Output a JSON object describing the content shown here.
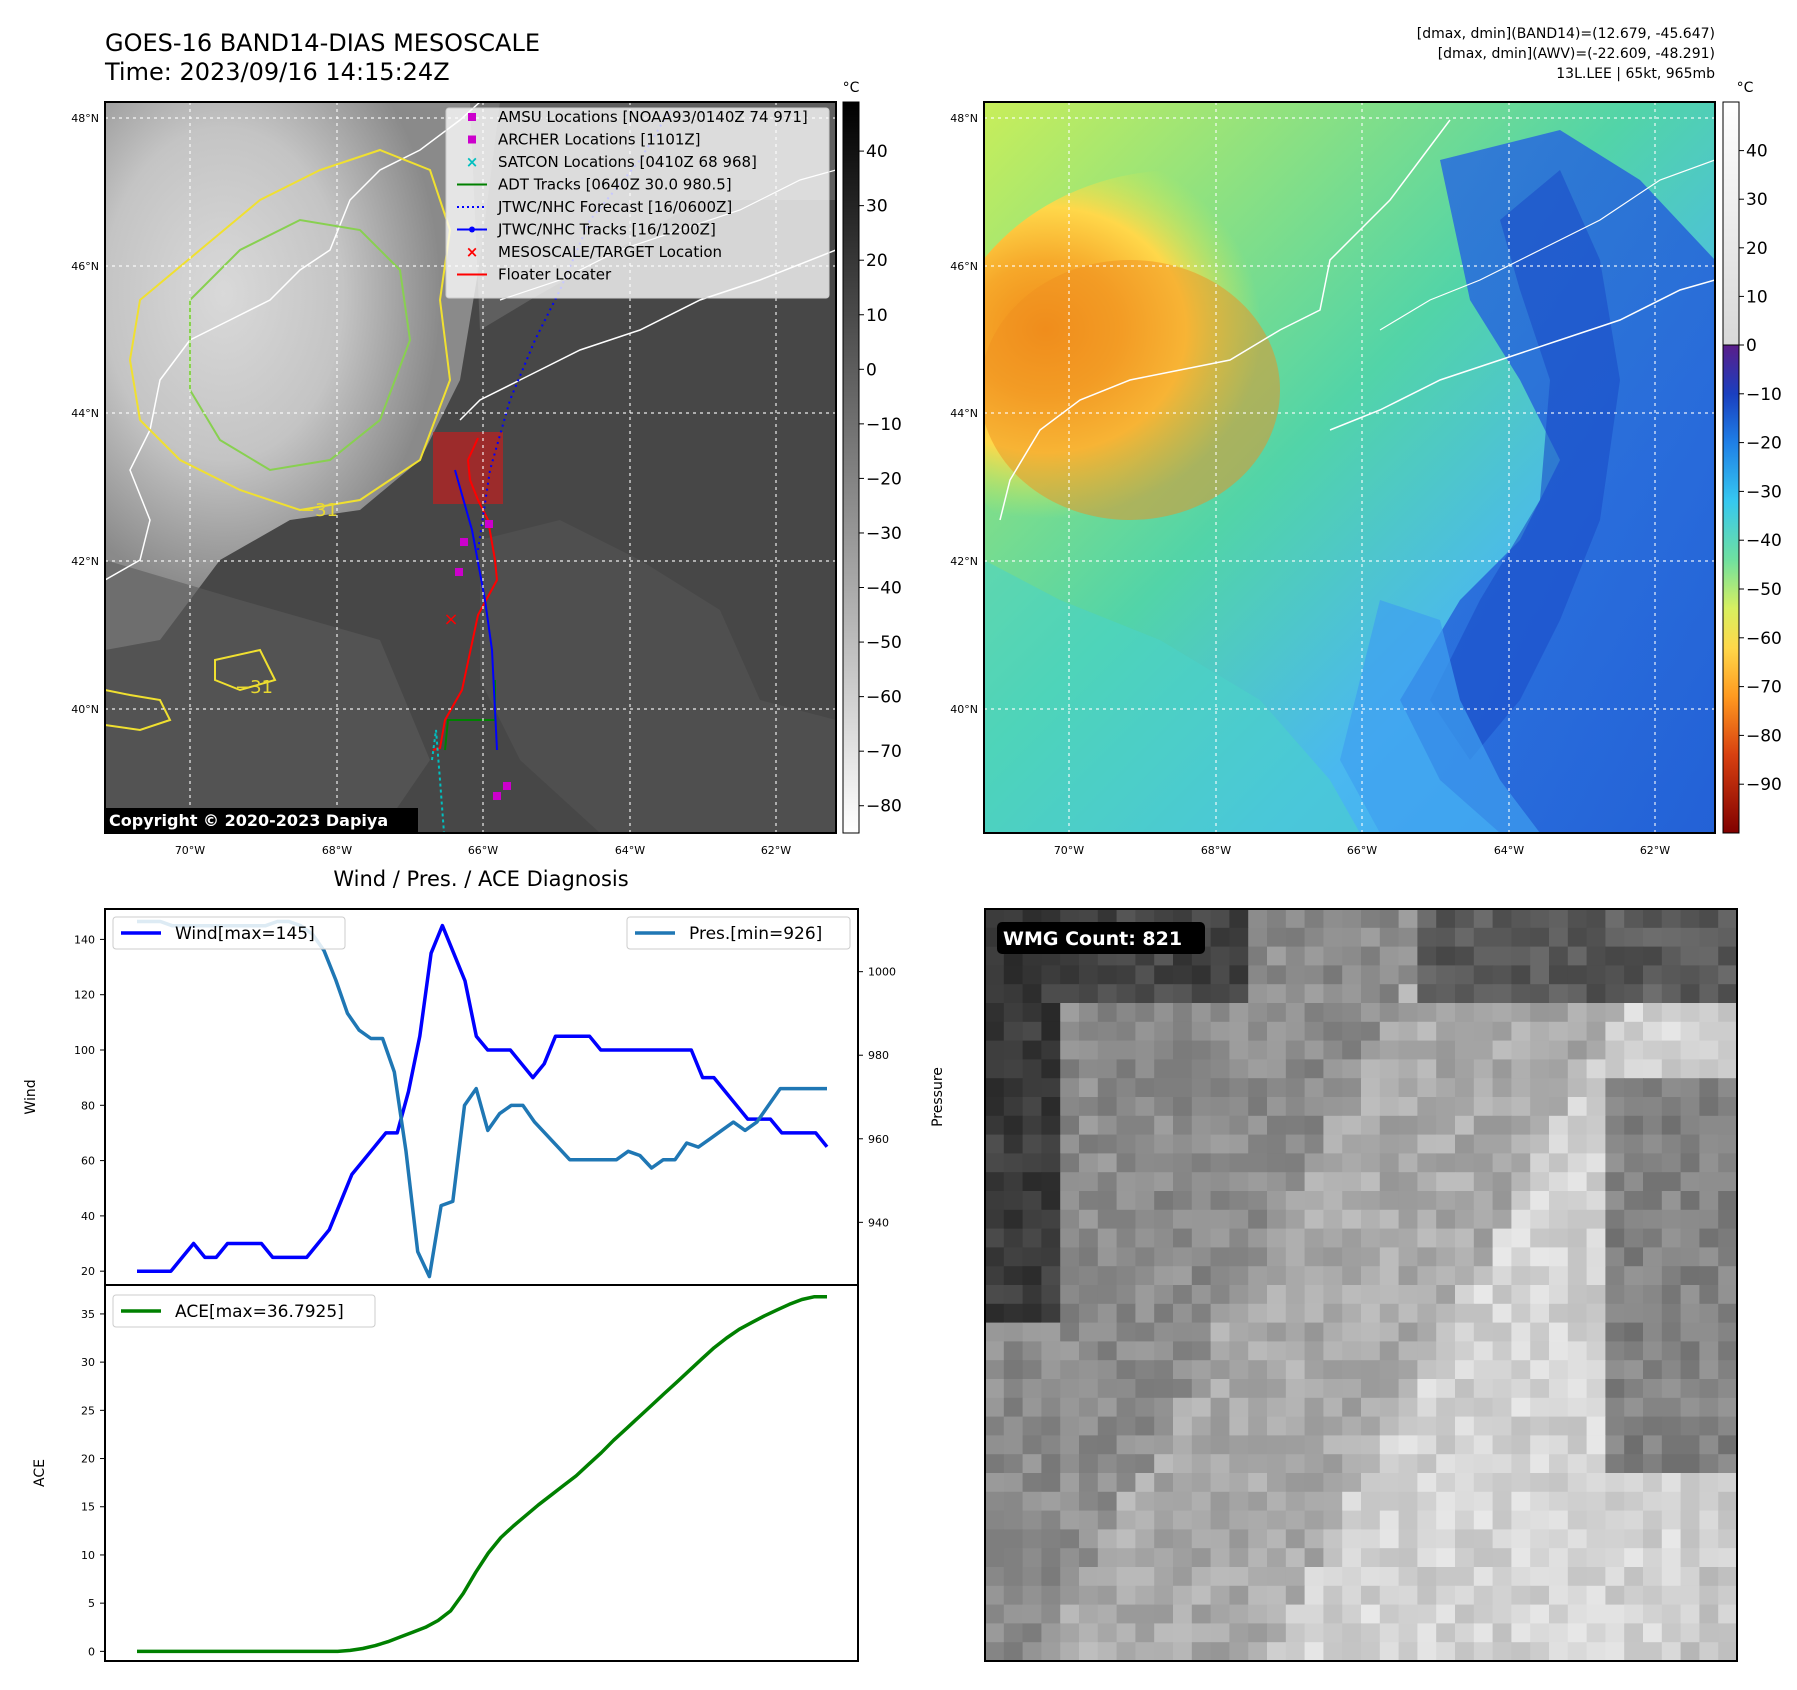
{
  "header": {
    "title_line1": "GOES-16 BAND14-DIAS MESOSCALE",
    "title_line2": "Time: 2023/09/16 14:15:24Z",
    "info_line1": "[dmax, dmin](BAND14)=(12.679, -45.647)",
    "info_line2": "[dmax, dmin](AWV)=(-22.609, -48.291)",
    "info_line3": "13L.LEE | 65kt, 965mb"
  },
  "map": {
    "lat_labels": [
      "48°N",
      "46°N",
      "44°N",
      "42°N",
      "40°N"
    ],
    "lon_labels": [
      "70°W",
      "68°W",
      "66°W",
      "64°W",
      "62°W"
    ],
    "contour_label": "−31",
    "copyright": "Copyright © 2020-2023 Dapiya",
    "legend": [
      {
        "label": "AMSU Locations [NOAA93/0140Z 74 971]",
        "color": "#cc00cc",
        "kind": "square"
      },
      {
        "label": "ARCHER Locations [1101Z]",
        "color": "#cc00cc",
        "kind": "square"
      },
      {
        "label": "SATCON Locations [0410Z 68 968]",
        "color": "#00bfbf",
        "kind": "x"
      },
      {
        "label": "ADT Tracks [0640Z 30.0 980.5]",
        "color": "#008000",
        "kind": "line"
      },
      {
        "label": "JTWC/NHC Forecast [16/0600Z]",
        "color": "#0000ff",
        "kind": "dotted"
      },
      {
        "label": "JTWC/NHC Tracks [16/1200Z]",
        "color": "#0000ff",
        "kind": "line-dot"
      },
      {
        "label": "MESOSCALE/TARGET Location",
        "color": "#ff0000",
        "kind": "x"
      },
      {
        "label": "Floater Locater",
        "color": "#ff0000",
        "kind": "line"
      }
    ]
  },
  "colorbar_gray": {
    "unit": "°C",
    "ticks": [
      "40",
      "30",
      "20",
      "10",
      "0",
      "−10",
      "−20",
      "−30",
      "−40",
      "−50",
      "−60",
      "−70",
      "−80"
    ]
  },
  "colorbar_awv": {
    "unit": "°C",
    "ticks": [
      "40",
      "30",
      "20",
      "10",
      "0",
      "−10",
      "−20",
      "−30",
      "−40",
      "−50",
      "−60",
      "−70",
      "−80",
      "−90"
    ]
  },
  "wmg": {
    "label": "WMG Count: 821"
  },
  "chart_data": [
    {
      "type": "line",
      "title": "Wind / Pres. / ACE Diagnosis",
      "ylabel": "Wind",
      "ylabel_right": "Pressure",
      "ylim": [
        15,
        151
      ],
      "ylim_right": [
        925,
        1015
      ],
      "yticks": [
        20,
        40,
        60,
        80,
        100,
        120,
        140
      ],
      "yticks_right": [
        940,
        960,
        980,
        1000
      ],
      "series": [
        {
          "name": "Wind[max=145]",
          "color": "#0000ff",
          "axis": "left",
          "values": [
            20,
            20,
            20,
            20,
            25,
            30,
            25,
            25,
            30,
            30,
            30,
            30,
            25,
            25,
            25,
            25,
            30,
            35,
            45,
            55,
            60,
            65,
            70,
            70,
            85,
            105,
            135,
            145,
            135,
            125,
            105,
            100,
            100,
            100,
            95,
            90,
            95,
            105,
            105,
            105,
            105,
            100,
            100,
            100,
            100,
            100,
            100,
            100,
            100,
            100,
            90,
            90,
            85,
            80,
            75,
            75,
            75,
            70,
            70,
            70,
            70,
            65
          ]
        },
        {
          "name": "Pres.[min=926]",
          "color": "#1f77b4",
          "axis": "right",
          "values": [
            1012,
            1012,
            1012,
            1011,
            1011,
            1011,
            1011,
            1011,
            1011,
            1011,
            1011,
            1011,
            1012,
            1012,
            1011,
            1009,
            1005,
            998,
            990,
            986,
            984,
            984,
            976,
            957,
            933,
            927,
            944,
            945,
            968,
            972,
            962,
            966,
            968,
            968,
            964,
            961,
            958,
            955,
            955,
            955,
            955,
            955,
            957,
            956,
            953,
            955,
            955,
            959,
            958,
            960,
            962,
            964,
            962,
            964,
            968,
            972,
            972,
            972,
            972,
            972
          ]
        }
      ]
    },
    {
      "type": "line",
      "ylabel": "ACE",
      "ylim": [
        -1,
        38
      ],
      "yticks": [
        0,
        5,
        10,
        15,
        20,
        25,
        30,
        35
      ],
      "series": [
        {
          "name": "ACE[max=36.7925]",
          "color": "#008000",
          "values": [
            0,
            0,
            0,
            0,
            0,
            0,
            0,
            0,
            0,
            0,
            0,
            0,
            0,
            0,
            0,
            0,
            0,
            0.1,
            0.3,
            0.6,
            1.0,
            1.5,
            2.0,
            2.5,
            3.2,
            4.2,
            6.0,
            8.2,
            10.2,
            11.8,
            13.0,
            14.1,
            15.2,
            16.2,
            17.2,
            18.2,
            19.4,
            20.6,
            21.9,
            23.1,
            24.3,
            25.5,
            26.7,
            27.9,
            29.1,
            30.3,
            31.5,
            32.5,
            33.4,
            34.1,
            34.8,
            35.4,
            36.0,
            36.5,
            36.79,
            36.79
          ]
        }
      ]
    }
  ]
}
